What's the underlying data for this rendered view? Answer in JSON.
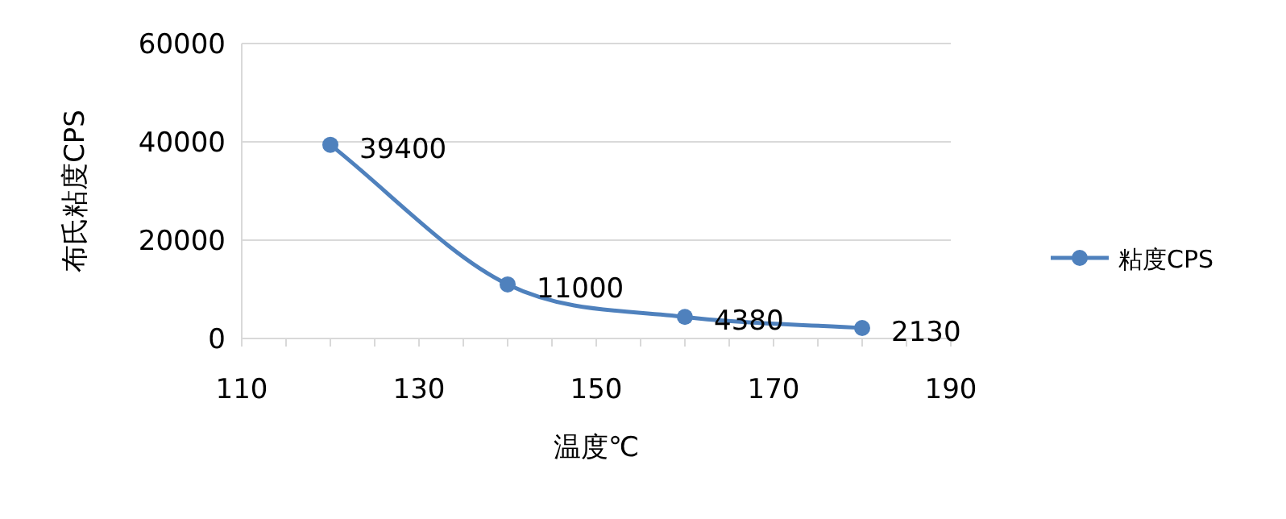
{
  "chart_data": {
    "type": "line",
    "xlabel": "温度℃",
    "ylabel": "布氏粘度CPS",
    "x": [
      120,
      140,
      160,
      180
    ],
    "series": [
      {
        "name": "粘度CPS",
        "color": "#4f81bd",
        "values": [
          39400,
          11000,
          4380,
          2130
        ]
      }
    ],
    "xlim": [
      110,
      190
    ],
    "xticks": [
      110,
      {
        "value": 115,
        "label": null
      },
      {
        "value": 120,
        "label": null
      },
      {
        "value": 125,
        "label": null
      },
      130,
      {
        "value": 135,
        "label": null
      },
      {
        "value": 140,
        "label": null
      },
      {
        "value": 145,
        "label": null
      },
      150,
      {
        "value": 155,
        "label": null
      },
      {
        "value": 160,
        "label": null
      },
      {
        "value": 165,
        "label": null
      },
      170,
      {
        "value": 175,
        "label": null
      },
      {
        "value": 180,
        "label": null
      },
      {
        "value": 185,
        "label": null
      },
      190
    ],
    "ylim": [
      0,
      60000
    ],
    "yticks": [
      0,
      20000,
      40000,
      60000
    ],
    "grid": "y",
    "legend": "right",
    "marker": "circle",
    "line_style": "solid",
    "data_labels": true
  }
}
